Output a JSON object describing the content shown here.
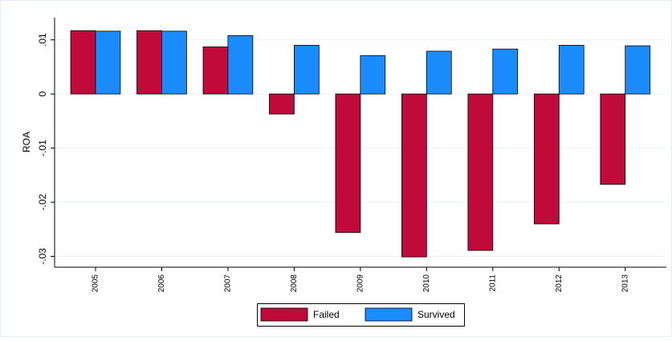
{
  "chart_data": {
    "type": "bar",
    "y_label": "ROA",
    "categories": [
      "2005",
      "2006",
      "2007",
      "2008",
      "2009",
      "2010",
      "2011",
      "2012",
      "2013"
    ],
    "series": [
      {
        "name": "Failed",
        "color": "#bf0a3a",
        "values": [
          0.0117,
          0.0117,
          0.0087,
          -0.0037,
          -0.0256,
          -0.0301,
          -0.0289,
          -0.024,
          -0.0167
        ]
      },
      {
        "name": "Survived",
        "color": "#1a8cff",
        "values": [
          0.0116,
          0.0116,
          0.0108,
          0.009,
          0.0071,
          0.0079,
          0.0083,
          0.009,
          0.0089
        ]
      }
    ],
    "ylim": [
      -0.032,
      0.0141
    ],
    "yticks": [
      {
        "value": 0.01,
        "label": ".01"
      },
      0,
      {
        "value": -0.01,
        "label": "-.01"
      },
      {
        "value": -0.02,
        "label": "-.02"
      },
      {
        "value": -0.03,
        "label": "-.03"
      }
    ],
    "grid": true,
    "legend": "bottom"
  }
}
